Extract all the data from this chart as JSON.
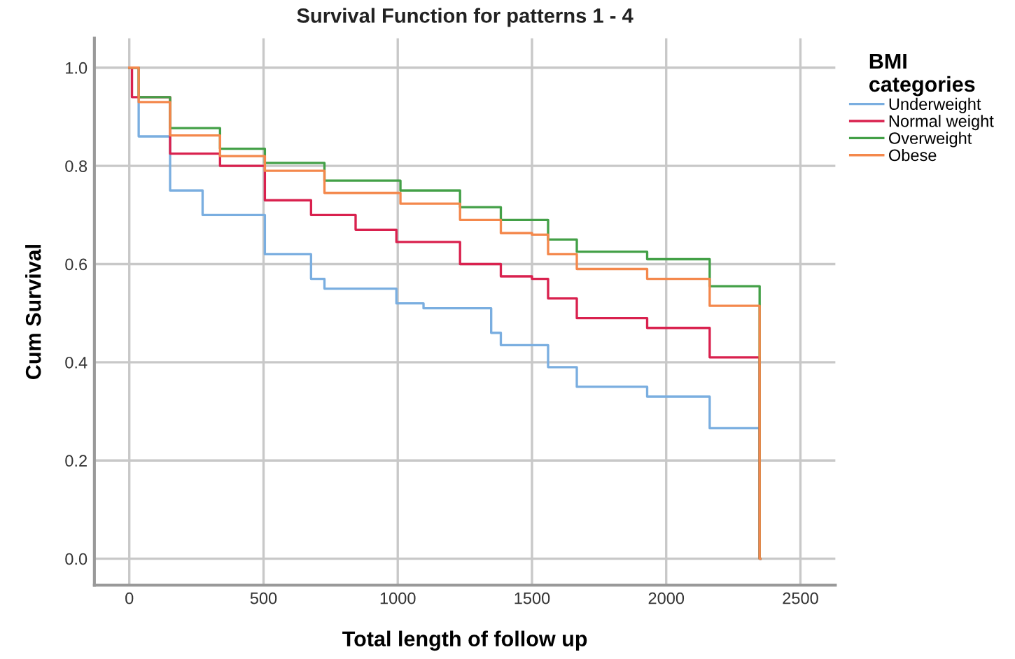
{
  "chart_data": {
    "type": "step",
    "title": "Survival Function for patterns 1 - 4",
    "xlabel": "Total length of follow up",
    "ylabel": "Cum Survival",
    "legend_title": "BMI\ncategories",
    "legend": "right",
    "xlim": [
      -130,
      2630
    ],
    "ylim": [
      -0.054,
      1.06
    ],
    "xticks": [
      0,
      500,
      1000,
      1500,
      2000,
      2500
    ],
    "yticks": [
      {
        "value": 0,
        "label": "0.0"
      },
      {
        "value": 0.2,
        "label": "0.2"
      },
      {
        "value": 0.4,
        "label": "0.4"
      },
      {
        "value": 0.6,
        "label": "0.6"
      },
      {
        "value": 0.8,
        "label": "0.8"
      },
      {
        "value": 1,
        "label": "1.0"
      }
    ],
    "grid": true,
    "marker": "none",
    "line_style": "solid",
    "series": [
      {
        "name": "Underweight",
        "color": "#7aaee0",
        "x": [
          0,
          35,
          152,
          273,
          505,
          677,
          727,
          995,
          1096,
          1348,
          1384,
          1500,
          1560,
          1667,
          1929,
          2162,
          2348,
          2350
        ],
        "values": [
          1.0,
          0.86,
          0.75,
          0.7,
          0.62,
          0.57,
          0.55,
          0.52,
          0.51,
          0.46,
          0.435,
          0.435,
          0.39,
          0.35,
          0.33,
          0.266,
          0.0,
          0.0
        ]
      },
      {
        "name": "Normal weight",
        "color": "#d9214e",
        "x": [
          0,
          10,
          152,
          338,
          505,
          677,
          843,
          995,
          1232,
          1384,
          1500,
          1560,
          1667,
          1929,
          2162,
          2348,
          2350
        ],
        "values": [
          1.0,
          0.94,
          0.825,
          0.8,
          0.73,
          0.7,
          0.67,
          0.645,
          0.6,
          0.575,
          0.57,
          0.53,
          0.49,
          0.47,
          0.41,
          0.0,
          0.0
        ]
      },
      {
        "name": "Overweight",
        "color": "#43a047",
        "x": [
          0,
          35,
          152,
          338,
          505,
          727,
          1010,
          1232,
          1384,
          1500,
          1560,
          1667,
          1929,
          2162,
          2348,
          2350
        ],
        "values": [
          1.0,
          0.94,
          0.877,
          0.835,
          0.806,
          0.77,
          0.75,
          0.716,
          0.69,
          0.69,
          0.65,
          0.625,
          0.61,
          0.555,
          0.0,
          0.0
        ]
      },
      {
        "name": "Obese",
        "color": "#f4884c",
        "x": [
          0,
          35,
          152,
          338,
          505,
          727,
          1010,
          1232,
          1384,
          1500,
          1560,
          1667,
          1929,
          2162,
          2348,
          2350
        ],
        "values": [
          1.0,
          0.93,
          0.862,
          0.82,
          0.79,
          0.745,
          0.723,
          0.69,
          0.663,
          0.66,
          0.62,
          0.59,
          0.57,
          0.515,
          0.0,
          0.0
        ]
      }
    ]
  }
}
